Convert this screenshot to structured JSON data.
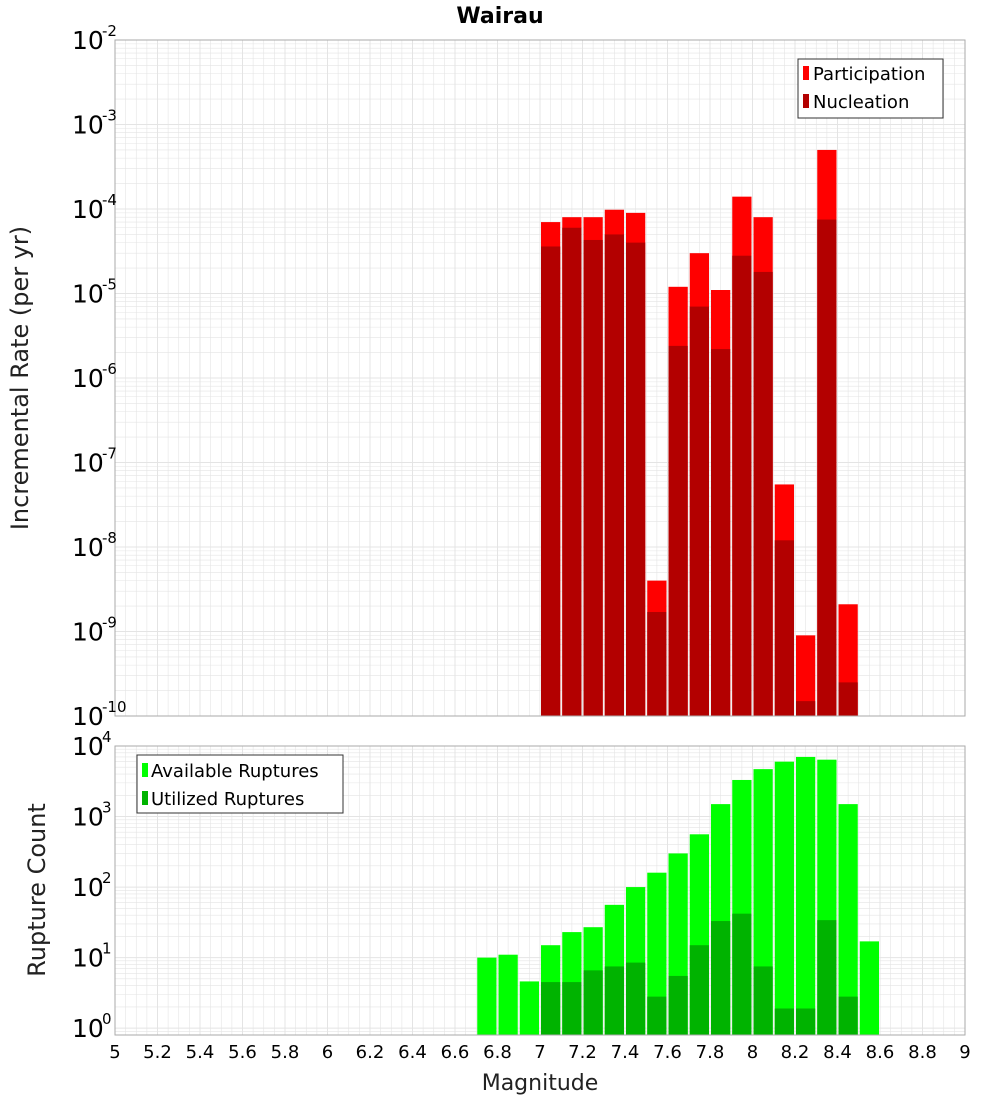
{
  "chart_title": "Wairau",
  "colors": {
    "participation": "#ff0000",
    "nucleation": "#b30000",
    "available": "#00ff00",
    "utilized": "#00b300",
    "grid": "#e4e4e4",
    "frame": "#aaaaaa"
  },
  "chart_data": [
    {
      "type": "bar",
      "ylabel": "Incremental Rate (per yr)",
      "xlabel": "Magnitude",
      "y_scale": "log",
      "ylim": [
        1e-10,
        0.01
      ],
      "xlim": [
        5,
        9
      ],
      "legend_position": "top-right",
      "y_ticks": [
        {
          "base": "10",
          "exp": "-10"
        },
        {
          "base": "10",
          "exp": "-9"
        },
        {
          "base": "10",
          "exp": "-8"
        },
        {
          "base": "10",
          "exp": "-7"
        },
        {
          "base": "10",
          "exp": "-6"
        },
        {
          "base": "10",
          "exp": "-5"
        },
        {
          "base": "10",
          "exp": "-4"
        },
        {
          "base": "10",
          "exp": "-3"
        },
        {
          "base": "10",
          "exp": "-2"
        }
      ],
      "x": [
        7.05,
        7.15,
        7.25,
        7.35,
        7.45,
        7.55,
        7.65,
        7.75,
        7.85,
        7.95,
        8.05,
        8.15,
        8.25,
        8.35,
        8.45
      ],
      "series": [
        {
          "name": "Participation",
          "values": [
            7e-05,
            8e-05,
            8e-05,
            9.8e-05,
            9e-05,
            4e-09,
            1.2e-05,
            3e-05,
            1.1e-05,
            0.00014,
            8e-05,
            5.5e-08,
            9e-10,
            0.0005,
            2.1e-09
          ]
        },
        {
          "name": "Nucleation",
          "values": [
            3.6e-05,
            6e-05,
            4.3e-05,
            5e-05,
            4e-05,
            1.7e-09,
            2.4e-06,
            7e-06,
            2.2e-06,
            2.8e-05,
            1.8e-05,
            1.2e-08,
            1.5e-10,
            7.5e-05,
            2.5e-10
          ]
        }
      ]
    },
    {
      "type": "bar",
      "ylabel": "Rupture Count",
      "xlabel": "Magnitude",
      "y_scale": "log",
      "ylim": [
        0.8,
        10000
      ],
      "xlim": [
        5,
        9
      ],
      "legend_position": "top-left",
      "y_ticks": [
        {
          "base": "10",
          "exp": "0"
        },
        {
          "base": "10",
          "exp": "1"
        },
        {
          "base": "10",
          "exp": "2"
        },
        {
          "base": "10",
          "exp": "3"
        },
        {
          "base": "10",
          "exp": "4"
        }
      ],
      "x_ticks": [
        "5",
        "5.2",
        "5.4",
        "5.6",
        "5.8",
        "6",
        "6.2",
        "6.4",
        "6.6",
        "6.8",
        "7",
        "7.2",
        "7.4",
        "7.6",
        "7.8",
        "8",
        "8.2",
        "8.4",
        "8.6",
        "8.8",
        "9"
      ],
      "x": [
        6.75,
        6.85,
        6.95,
        7.05,
        7.15,
        7.25,
        7.35,
        7.45,
        7.55,
        7.65,
        7.75,
        7.85,
        7.95,
        8.05,
        8.15,
        8.25,
        8.35,
        8.45,
        8.55
      ],
      "series": [
        {
          "name": "Available Ruptures",
          "values": [
            10,
            11,
            4.6,
            15,
            23,
            27,
            56,
            100,
            160,
            300,
            560,
            1500,
            3300,
            4700,
            6000,
            7000,
            6400,
            1500,
            17
          ]
        },
        {
          "name": "Utilized Ruptures",
          "values": [
            null,
            null,
            null,
            4.5,
            4.5,
            6.6,
            7.5,
            8.5,
            2.8,
            5.5,
            15,
            33,
            42,
            7.5,
            1.9,
            1.9,
            34,
            2.8,
            null
          ]
        }
      ]
    }
  ]
}
